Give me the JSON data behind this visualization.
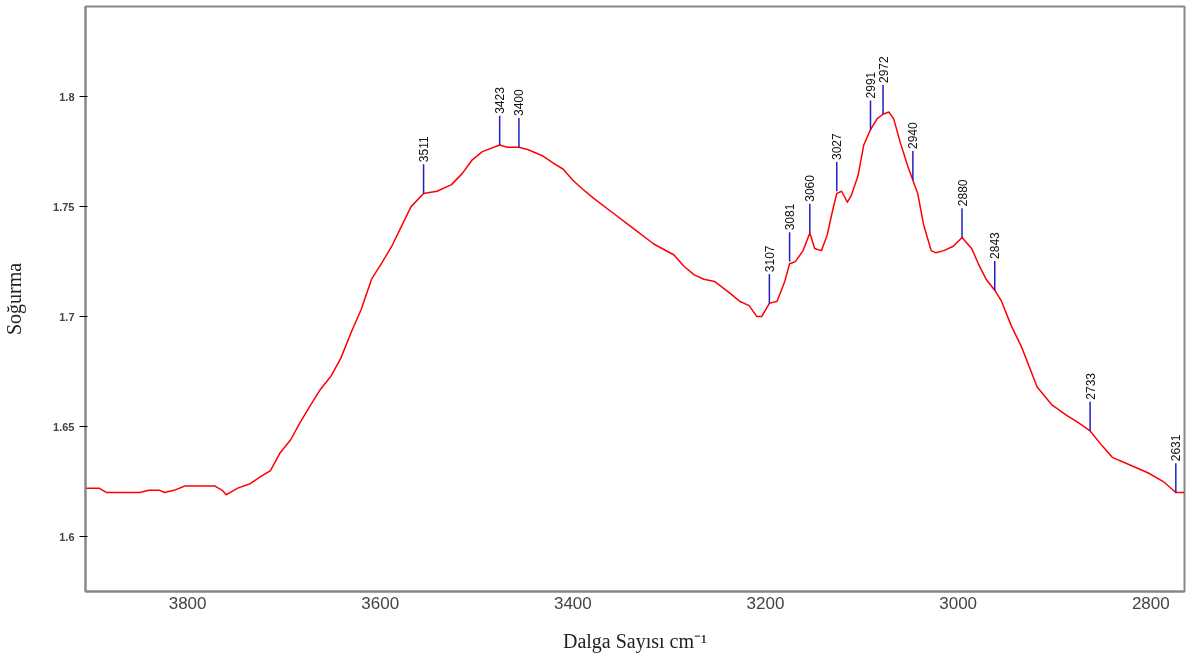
{
  "chart_data": {
    "type": "line",
    "xlabel": "Dalga Sayısı cm⁻¹",
    "ylabel": "Soğurma",
    "x": [
      3906,
      3892,
      3884,
      3871,
      3850,
      3840,
      3829,
      3824,
      3814,
      3803,
      3787,
      3772,
      3764,
      3760,
      3756,
      3748,
      3735,
      3725,
      3714,
      3704,
      3693,
      3683,
      3672,
      3662,
      3651,
      3641,
      3630,
      3620,
      3609,
      3599,
      3588,
      3578,
      3568,
      3555,
      3541,
      3526,
      3515,
      3505,
      3494,
      3476,
      3468,
      3456,
      3447,
      3431,
      3421,
      3410,
      3400,
      3390,
      3379,
      3358,
      3337,
      3316,
      3295,
      3285,
      3274,
      3264,
      3253,
      3238,
      3227,
      3217,
      3209,
      3204,
      3196,
      3188,
      3180,
      3175,
      3169,
      3161,
      3154,
      3149,
      3142,
      3136,
      3131,
      3126,
      3121,
      3115,
      3111,
      3104,
      3098,
      3091,
      3084,
      3078,
      3072,
      3067,
      3060,
      3052,
      3047,
      3042,
      3036,
      3028,
      3023,
      3015,
      3005,
      2996,
      2986,
      2979,
      2971,
      2962,
      2955,
      2945,
      2934,
      2918,
      2903,
      2887,
      2876,
      2863,
      2850,
      2840,
      2824,
      2803,
      2787,
      2774,
      2765
    ],
    "series": [
      {
        "color": "#ff0000",
        "values": [
          1.622,
          1.622,
          1.62,
          1.62,
          1.62,
          1.621,
          1.621,
          1.62,
          1.621,
          1.623,
          1.623,
          1.623,
          1.621,
          1.619,
          1.62,
          1.622,
          1.624,
          1.627,
          1.63,
          1.638,
          1.644,
          1.652,
          1.66,
          1.667,
          1.673,
          1.681,
          1.693,
          1.703,
          1.717,
          1.724,
          1.732,
          1.741,
          1.75,
          1.756,
          1.757,
          1.76,
          1.765,
          1.771,
          1.775,
          1.778,
          1.777,
          1.777,
          1.776,
          1.773,
          1.77,
          1.767,
          1.762,
          1.758,
          1.754,
          1.747,
          1.74,
          1.733,
          1.728,
          1.723,
          1.719,
          1.717,
          1.716,
          1.711,
          1.707,
          1.705,
          1.7,
          1.7,
          1.706,
          1.707,
          1.716,
          1.724,
          1.725,
          1.73,
          1.738,
          1.731,
          1.73,
          1.737,
          1.747,
          1.756,
          1.757,
          1.752,
          1.755,
          1.764,
          1.778,
          1.785,
          1.79,
          1.792,
          1.793,
          1.79,
          1.779,
          1.768,
          1.762,
          1.756,
          1.742,
          1.73,
          1.729,
          1.73,
          1.732,
          1.736,
          1.731,
          1.724,
          1.717,
          1.712,
          1.707,
          1.696,
          1.686,
          1.668,
          1.66,
          1.655,
          1.652,
          1.648,
          1.641,
          1.636,
          1.633,
          1.629,
          1.625,
          1.62,
          1.62
        ]
      }
    ],
    "xlim": [
      3906,
      2765
    ],
    "ylim": [
      1.575,
      1.841
    ],
    "xticks": [
      3800,
      3600,
      3400,
      3200,
      3000,
      2800
    ],
    "yticks": [
      1.6,
      1.65,
      1.7,
      1.75,
      1.8
    ],
    "grid": false,
    "marker": "none",
    "line_style": "solid",
    "annotations": [
      {
        "text": "3511",
        "x": 3555,
        "y": 1.756
      },
      {
        "text": "3423",
        "x": 3476,
        "y": 1.778
      },
      {
        "text": "3400",
        "x": 3456,
        "y": 1.777
      },
      {
        "text": "3107",
        "x": 3196,
        "y": 1.706
      },
      {
        "text": "3081",
        "x": 3175,
        "y": 1.725
      },
      {
        "text": "3060",
        "x": 3154,
        "y": 1.738
      },
      {
        "text": "3027",
        "x": 3126,
        "y": 1.757
      },
      {
        "text": "2991",
        "x": 3091,
        "y": 1.785
      },
      {
        "text": "2972",
        "x": 3078,
        "y": 1.792
      },
      {
        "text": "2940",
        "x": 3047,
        "y": 1.762
      },
      {
        "text": "2880",
        "x": 2996,
        "y": 1.736
      },
      {
        "text": "2843",
        "x": 2962,
        "y": 1.712
      },
      {
        "text": "2733",
        "x": 2863,
        "y": 1.648
      },
      {
        "text": "2631",
        "x": 2774,
        "y": 1.62
      }
    ]
  }
}
